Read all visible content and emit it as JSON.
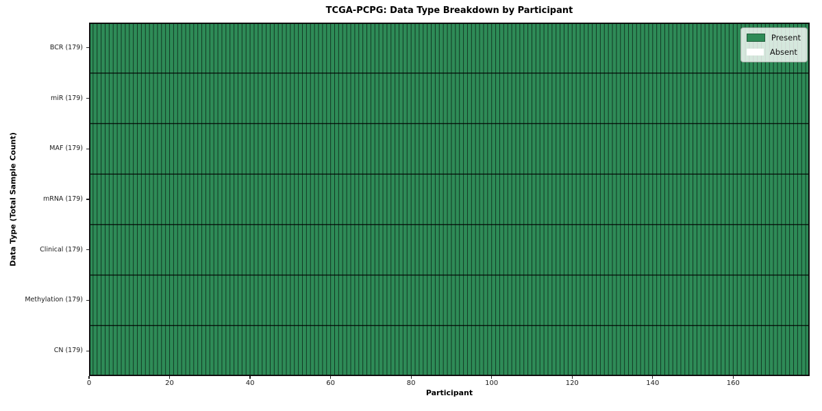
{
  "chart_data": {
    "type": "heatmap",
    "title": "TCGA-PCPG: Data Type Breakdown by Participant",
    "xlabel": "Participant",
    "ylabel": "Data Type (Total Sample Count)",
    "n_participants": 179,
    "xlim": [
      0,
      179
    ],
    "x_ticks": [
      0,
      20,
      40,
      60,
      80,
      100,
      120,
      140,
      160
    ],
    "rows": [
      {
        "label": "BCR (179)",
        "data_type": "BCR",
        "total_sample_count": 179,
        "present": 179,
        "absent": 0
      },
      {
        "label": "miR (179)",
        "data_type": "miR",
        "total_sample_count": 179,
        "present": 179,
        "absent": 0
      },
      {
        "label": "MAF (179)",
        "data_type": "MAF",
        "total_sample_count": 179,
        "present": 179,
        "absent": 0
      },
      {
        "label": "mRNA (179)",
        "data_type": "mRNA",
        "total_sample_count": 179,
        "present": 179,
        "absent": 0
      },
      {
        "label": "Clinical (179)",
        "data_type": "Clinical",
        "total_sample_count": 179,
        "present": 179,
        "absent": 0
      },
      {
        "label": "Methylation (179)",
        "data_type": "Methylation",
        "total_sample_count": 179,
        "present": 179,
        "absent": 0
      },
      {
        "label": "CN (179)",
        "data_type": "CN",
        "total_sample_count": 179,
        "present": 179,
        "absent": 0
      }
    ],
    "all_cells_present": true,
    "grid": "per-cell black borders, on",
    "legend": {
      "position": "upper-right",
      "entries": [
        {
          "label": "Present",
          "color": "#2e8b57"
        },
        {
          "label": "Absent",
          "color": "#ffffff"
        }
      ]
    },
    "colors": {
      "present": "#2e8b57",
      "absent": "#ffffff",
      "cell_edge": "#000000",
      "figure_background": "#ffffff"
    }
  }
}
